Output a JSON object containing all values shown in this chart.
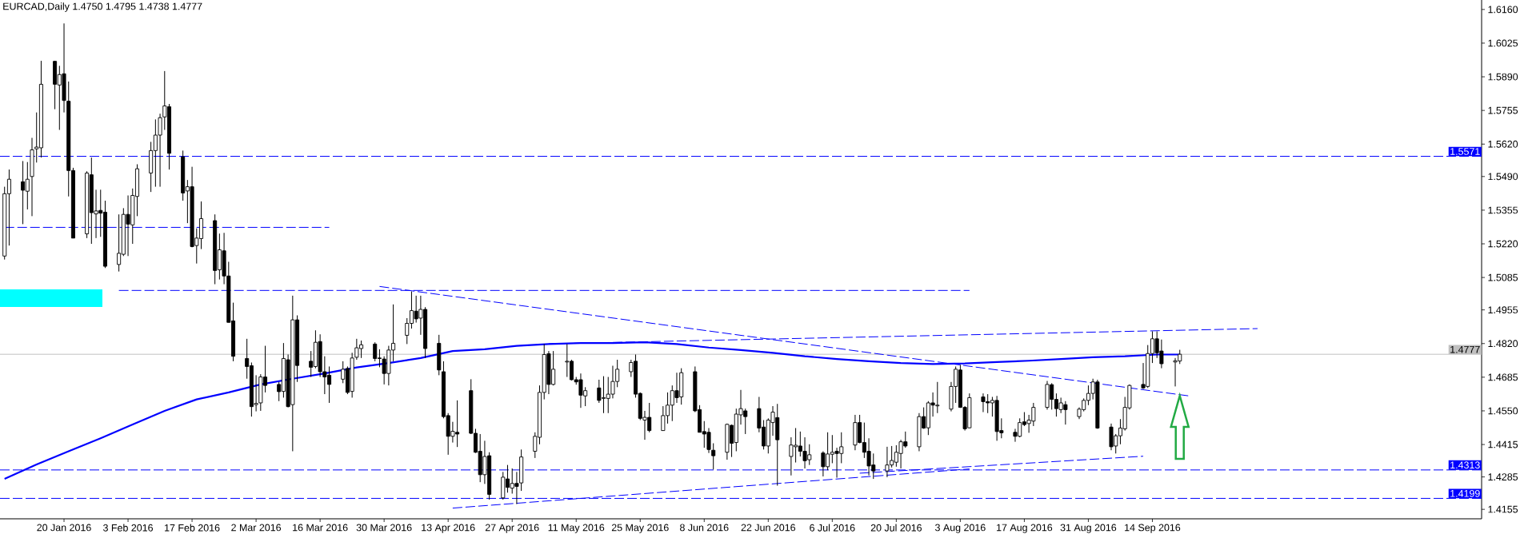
{
  "chart_data": {
    "type": "candlestick",
    "title": "EURCAD,Daily 1.4750 1.4795 1.4738 1.4777",
    "x": [
      "2016-01-07",
      "2016-01-08",
      "2016-01-11",
      "2016-01-12",
      "2016-01-13",
      "2016-01-14",
      "2016-01-15",
      "2016-01-18",
      "2016-01-19",
      "2016-01-20",
      "2016-01-21",
      "2016-01-22",
      "2016-01-25",
      "2016-01-26",
      "2016-01-27",
      "2016-01-28",
      "2016-01-29",
      "2016-02-01",
      "2016-02-02",
      "2016-02-03",
      "2016-02-04",
      "2016-02-05",
      "2016-02-08",
      "2016-02-09",
      "2016-02-10",
      "2016-02-11",
      "2016-02-12",
      "2016-02-15",
      "2016-02-16",
      "2016-02-17",
      "2016-02-18",
      "2016-02-19",
      "2016-02-22",
      "2016-02-23",
      "2016-02-24",
      "2016-02-25",
      "2016-02-26",
      "2016-02-29",
      "2016-03-01",
      "2016-03-02",
      "2016-03-03",
      "2016-03-04",
      "2016-03-07",
      "2016-03-08",
      "2016-03-09",
      "2016-03-10",
      "2016-03-11",
      "2016-03-14",
      "2016-03-15",
      "2016-03-16",
      "2016-03-17",
      "2016-03-18",
      "2016-03-21",
      "2016-03-22",
      "2016-03-23",
      "2016-03-24",
      "2016-03-25",
      "2016-03-28",
      "2016-03-29",
      "2016-03-30",
      "2016-03-31",
      "2016-04-01",
      "2016-04-04",
      "2016-04-05",
      "2016-04-06",
      "2016-04-07",
      "2016-04-08",
      "2016-04-11",
      "2016-04-12",
      "2016-04-13",
      "2016-04-14",
      "2016-04-15",
      "2016-04-18",
      "2016-04-19",
      "2016-04-20",
      "2016-04-21",
      "2016-04-22",
      "2016-04-25",
      "2016-04-26",
      "2016-04-27",
      "2016-04-28",
      "2016-04-29",
      "2016-05-02",
      "2016-05-03",
      "2016-05-04",
      "2016-05-05",
      "2016-05-06",
      "2016-05-09",
      "2016-05-10",
      "2016-05-11",
      "2016-05-12",
      "2016-05-13",
      "2016-05-16",
      "2016-05-17",
      "2016-05-18",
      "2016-05-19",
      "2016-05-20",
      "2016-05-23",
      "2016-05-24",
      "2016-05-25",
      "2016-05-26",
      "2016-05-27",
      "2016-05-30",
      "2016-05-31",
      "2016-06-01",
      "2016-06-02",
      "2016-06-03",
      "2016-06-06",
      "2016-06-07",
      "2016-06-08",
      "2016-06-09",
      "2016-06-10",
      "2016-06-13",
      "2016-06-14",
      "2016-06-15",
      "2016-06-16",
      "2016-06-17",
      "2016-06-20",
      "2016-06-21",
      "2016-06-22",
      "2016-06-23",
      "2016-06-24",
      "2016-06-27",
      "2016-06-28",
      "2016-06-29",
      "2016-06-30",
      "2016-07-01",
      "2016-07-04",
      "2016-07-05",
      "2016-07-06",
      "2016-07-07",
      "2016-07-08",
      "2016-07-11",
      "2016-07-12",
      "2016-07-13",
      "2016-07-14",
      "2016-07-15",
      "2016-07-18",
      "2016-07-19",
      "2016-07-20",
      "2016-07-21",
      "2016-07-22",
      "2016-07-25",
      "2016-07-26",
      "2016-07-27",
      "2016-07-28",
      "2016-07-29",
      "2016-08-01",
      "2016-08-02",
      "2016-08-03",
      "2016-08-04",
      "2016-08-05",
      "2016-08-08",
      "2016-08-09",
      "2016-08-10",
      "2016-08-11",
      "2016-08-12",
      "2016-08-15",
      "2016-08-16",
      "2016-08-17",
      "2016-08-18",
      "2016-08-19",
      "2016-08-22",
      "2016-08-23",
      "2016-08-24",
      "2016-08-25",
      "2016-08-26",
      "2016-08-29",
      "2016-08-30",
      "2016-08-31",
      "2016-09-01",
      "2016-09-02",
      "2016-09-05",
      "2016-09-06",
      "2016-09-07",
      "2016-09-08",
      "2016-09-09",
      "2016-09-12",
      "2016-09-13",
      "2016-09-14",
      "2016-09-15",
      "2016-09-16",
      "2016-09-19",
      "2016-09-20"
    ],
    "xlim": [
      "2016-01-06",
      "2016-11-25"
    ],
    "xticks": [
      {
        "value": "2016-01-20",
        "label": "20 Jan 2016"
      },
      {
        "value": "2016-02-03",
        "label": "3 Feb 2016"
      },
      {
        "value": "2016-02-17",
        "label": "17 Feb 2016"
      },
      {
        "value": "2016-03-02",
        "label": "2 Mar 2016"
      },
      {
        "value": "2016-03-16",
        "label": "16 Mar 2016"
      },
      {
        "value": "2016-03-30",
        "label": "30 Mar 2016"
      },
      {
        "value": "2016-04-13",
        "label": "13 Apr 2016"
      },
      {
        "value": "2016-04-27",
        "label": "27 Apr 2016"
      },
      {
        "value": "2016-05-11",
        "label": "11 May 2016"
      },
      {
        "value": "2016-05-25",
        "label": "25 May 2016"
      },
      {
        "value": "2016-06-08",
        "label": "8 Jun 2016"
      },
      {
        "value": "2016-06-22",
        "label": "22 Jun 2016"
      },
      {
        "value": "2016-07-06",
        "label": "6 Jul 2016"
      },
      {
        "value": "2016-07-20",
        "label": "20 Jul 2016"
      },
      {
        "value": "2016-08-03",
        "label": "3 Aug 2016"
      },
      {
        "value": "2016-08-17",
        "label": "17 Aug 2016"
      },
      {
        "value": "2016-08-31",
        "label": "31 Aug 2016"
      },
      {
        "value": "2016-09-14",
        "label": "14 Sep 2016"
      }
    ],
    "ohlc": [
      [
        1.5171,
        1.5449,
        1.5157,
        1.5421
      ],
      [
        1.5421,
        1.5518,
        1.5213,
        1.5479
      ],
      [
        1.5469,
        1.5552,
        1.5299,
        1.5435
      ],
      [
        1.5431,
        1.5548,
        1.5358,
        1.5479
      ],
      [
        1.549,
        1.5645,
        1.5331,
        1.5597
      ],
      [
        1.5601,
        1.5747,
        1.5546,
        1.5608
      ],
      [
        1.5605,
        1.5954,
        1.5566,
        1.586
      ],
      [
        1.5952,
        1.5954,
        1.576,
        1.586
      ],
      [
        1.5857,
        1.5934,
        1.5677,
        1.5899
      ],
      [
        1.5902,
        1.6104,
        1.5747,
        1.5795
      ],
      [
        1.5792,
        1.5871,
        1.541,
        1.5514
      ],
      [
        1.5514,
        1.5525,
        1.5243,
        1.5243
      ],
      [
        1.526,
        1.5511,
        1.5243,
        1.5504
      ],
      [
        1.5497,
        1.5566,
        1.522,
        1.5345
      ],
      [
        1.534,
        1.5437,
        1.5243,
        1.5352
      ],
      [
        1.5354,
        1.5437,
        1.5248,
        1.5343
      ],
      [
        1.5347,
        1.5393,
        1.5123,
        1.513
      ],
      [
        1.5137,
        1.5338,
        1.5109,
        1.5182
      ],
      [
        1.5178,
        1.5363,
        1.5171,
        1.5338
      ],
      [
        1.5338,
        1.5414,
        1.5171,
        1.5299
      ],
      [
        1.5296,
        1.5442,
        1.522,
        1.5414
      ],
      [
        1.541,
        1.5539,
        1.5331,
        1.5521
      ],
      [
        1.5504,
        1.5629,
        1.5428,
        1.5594
      ],
      [
        1.5594,
        1.5719,
        1.5449,
        1.5656
      ],
      [
        1.5656,
        1.5742,
        1.5449,
        1.5726
      ],
      [
        1.5729,
        1.5913,
        1.5677,
        1.5773
      ],
      [
        1.577,
        1.5781,
        1.5518,
        1.5583
      ],
      [
        1.5569,
        1.5594,
        1.5393,
        1.5424
      ],
      [
        1.5432,
        1.5476,
        1.5303,
        1.5449
      ],
      [
        1.5449,
        1.5529,
        1.5206,
        1.5209
      ],
      [
        1.5213,
        1.5282,
        1.5141,
        1.5243
      ],
      [
        1.5241,
        1.539,
        1.5199,
        1.5321
      ],
      [
        1.5313,
        1.5338,
        1.5058,
        1.5113
      ],
      [
        1.5116,
        1.5261,
        1.5077,
        1.5196
      ],
      [
        1.5192,
        1.5264,
        1.5058,
        1.5091
      ],
      [
        1.5091,
        1.5148,
        1.4905,
        1.4905
      ],
      [
        1.4911,
        1.4984,
        1.4749,
        1.4769
      ],
      [
        1.476,
        1.4839,
        1.4679,
        1.4728
      ],
      [
        1.4731,
        1.4744,
        1.4527,
        1.4567
      ],
      [
        1.4575,
        1.4693,
        1.4548,
        1.458
      ],
      [
        1.4582,
        1.4697,
        1.455,
        1.4686
      ],
      [
        1.4686,
        1.4811,
        1.4624,
        1.4652
      ],
      [
        1.4656,
        1.4666,
        1.4589,
        1.4627
      ],
      [
        1.4628,
        1.4822,
        1.4603,
        1.476
      ],
      [
        1.4755,
        1.4776,
        1.4564,
        1.4567
      ],
      [
        1.4575,
        1.5012,
        1.4388,
        1.4915
      ],
      [
        1.4915,
        1.4933,
        1.4666,
        1.4732
      ],
      [
        1.4749,
        1.479,
        1.4686,
        1.4725
      ],
      [
        1.4728,
        1.4873,
        1.4721,
        1.4825
      ],
      [
        1.4828,
        1.4857,
        1.4686,
        1.4707
      ],
      [
        1.4707,
        1.4769,
        1.4617,
        1.4686
      ],
      [
        1.4693,
        1.4728,
        1.4582,
        1.4656
      ],
      [
        1.4677,
        1.4749,
        1.4661,
        1.4717
      ],
      [
        1.472,
        1.4728,
        1.4617,
        1.4624
      ],
      [
        1.4628,
        1.4783,
        1.4603,
        1.4762
      ],
      [
        1.4765,
        1.4839,
        1.4755,
        1.4803
      ],
      [
        1.48,
        1.4832,
        1.4762,
        1.4815
      ],
      [
        1.4818,
        1.4825,
        1.4749,
        1.476
      ],
      [
        1.4762,
        1.4797,
        1.4725,
        1.476
      ],
      [
        1.4758,
        1.4769,
        1.4656,
        1.47
      ],
      [
        1.47,
        1.4811,
        1.4652,
        1.4794
      ],
      [
        1.4794,
        1.4977,
        1.4749,
        1.4821
      ],
      [
        1.4853,
        1.4922,
        1.4818,
        1.4901
      ],
      [
        1.4901,
        1.5029,
        1.488,
        1.4952
      ],
      [
        1.495,
        1.5012,
        1.4904,
        1.4919
      ],
      [
        1.4922,
        1.5012,
        1.4855,
        1.4957
      ],
      [
        1.4957,
        1.4966,
        1.4762,
        1.48
      ],
      [
        1.4821,
        1.4855,
        1.4693,
        1.4714
      ],
      [
        1.4707,
        1.4749,
        1.452,
        1.4527
      ],
      [
        1.4531,
        1.4541,
        1.4374,
        1.4448
      ],
      [
        1.4448,
        1.4506,
        1.4423,
        1.4468
      ],
      [
        1.4464,
        1.4592,
        1.4405,
        1.4457
      ],
      [
        1.4631,
        1.4677,
        1.4457,
        1.446
      ],
      [
        1.446,
        1.4478,
        1.4381,
        1.4384
      ],
      [
        1.4388,
        1.4457,
        1.4264,
        1.4294
      ],
      [
        1.4294,
        1.443,
        1.4257,
        1.4367
      ],
      [
        1.437,
        1.4384,
        1.4194,
        1.4215
      ],
      [
        1.4201,
        1.4305,
        1.4194,
        1.4284
      ],
      [
        1.4277,
        1.4333,
        1.4222,
        1.4243
      ],
      [
        1.424,
        1.4319,
        1.4218,
        1.4259
      ],
      [
        1.4259,
        1.4305,
        1.4176,
        1.4247
      ],
      [
        1.4261,
        1.4395,
        1.4229,
        1.4365
      ],
      [
        1.4388,
        1.4464,
        1.4361,
        1.4448
      ],
      [
        1.4444,
        1.4652,
        1.4416,
        1.4624
      ],
      [
        1.4624,
        1.4818,
        1.4596,
        1.4776
      ],
      [
        1.4779,
        1.479,
        1.4617,
        1.4656
      ],
      [
        1.4656,
        1.479,
        1.4652,
        1.4717
      ],
      [
        1.4746,
        1.4818,
        1.4686,
        1.4749
      ],
      [
        1.4749,
        1.4755,
        1.4672,
        1.4675
      ],
      [
        1.4675,
        1.4686,
        1.4655,
        1.4666
      ],
      [
        1.4675,
        1.47,
        1.4562,
        1.4613
      ],
      [
        1.461,
        1.4645,
        1.4569,
        1.4631
      ],
      [
        1.4642,
        1.4675,
        1.4582,
        1.4592
      ],
      [
        1.46,
        1.4689,
        1.4541,
        1.4603
      ],
      [
        1.46,
        1.4686,
        1.4541,
        1.4617
      ],
      [
        1.4617,
        1.4731,
        1.46,
        1.4668
      ],
      [
        1.4668,
        1.4755,
        1.4645,
        1.4717
      ],
      [
        1.4707,
        1.4755,
        1.4686,
        1.4744
      ],
      [
        1.4749,
        1.4776,
        1.4603,
        1.4617
      ],
      [
        1.462,
        1.4624,
        1.4513,
        1.452
      ],
      [
        1.4513,
        1.455,
        1.4434,
        1.4524
      ],
      [
        1.4524,
        1.4582,
        1.4464,
        1.4471
      ],
      [
        1.4471,
        1.4569,
        1.4471,
        1.4531
      ],
      [
        1.4531,
        1.4624,
        1.4499,
        1.4573
      ],
      [
        1.4573,
        1.4652,
        1.4509,
        1.4631
      ],
      [
        1.4631,
        1.4703,
        1.4582,
        1.4603
      ],
      [
        1.4606,
        1.4721,
        1.4575,
        1.4703
      ],
      [
        1.4707,
        1.4728,
        1.4545,
        1.455
      ],
      [
        1.4555,
        1.4573,
        1.4464,
        1.4464
      ],
      [
        1.4467,
        1.4509,
        1.4402,
        1.4457
      ],
      [
        1.4464,
        1.4481,
        1.4381,
        1.4395
      ],
      [
        1.4392,
        1.442,
        1.4315,
        1.437
      ],
      [
        1.4384,
        1.4499,
        1.4354,
        1.4496
      ],
      [
        1.4492,
        1.4495,
        1.4365,
        1.442
      ],
      [
        1.4423,
        1.4559,
        1.4388,
        1.4537
      ],
      [
        1.4534,
        1.4634,
        1.4495,
        1.4559
      ],
      [
        1.455,
        1.4559,
        1.4457,
        1.4527
      ],
      [
        1.4559,
        1.4606,
        1.4464,
        1.4481
      ],
      [
        1.4485,
        1.4513,
        1.4395,
        1.4409
      ],
      [
        1.4409,
        1.452,
        1.4379,
        1.4513
      ],
      [
        1.4503,
        1.4569,
        1.445,
        1.4545
      ],
      [
        1.4523,
        1.4578,
        1.425,
        1.4434
      ],
      [
        1.4367,
        1.4444,
        1.4291,
        1.4413
      ],
      [
        1.4406,
        1.4481,
        1.4343,
        1.4412
      ],
      [
        1.4409,
        1.4467,
        1.4367,
        1.4388
      ],
      [
        1.4388,
        1.4444,
        1.4319,
        1.435
      ],
      [
        1.4354,
        1.4416,
        1.4333,
        1.4374
      ],
      [
        1.4381,
        1.4388,
        1.4287,
        1.4326
      ],
      [
        1.4326,
        1.4464,
        1.4312,
        1.4377
      ],
      [
        1.4376,
        1.4453,
        1.434,
        1.4384
      ],
      [
        1.4388,
        1.4402,
        1.4282,
        1.4379
      ],
      [
        1.4379,
        1.4464,
        1.434,
        1.4406
      ],
      [
        1.4413,
        1.4534,
        1.4392,
        1.4503
      ],
      [
        1.4503,
        1.4534,
        1.442,
        1.4423
      ],
      [
        1.4423,
        1.4503,
        1.4361,
        1.4384
      ],
      [
        1.4388,
        1.444,
        1.4291,
        1.4329
      ],
      [
        1.4333,
        1.4379,
        1.4277,
        1.4309
      ],
      [
        1.4309,
        1.4406,
        1.4284,
        1.4333
      ],
      [
        1.4333,
        1.4409,
        1.4323,
        1.4351
      ],
      [
        1.4344,
        1.4412,
        1.4326,
        1.4384
      ],
      [
        1.4379,
        1.4434,
        1.4319,
        1.4426
      ],
      [
        1.4426,
        1.4467,
        1.4402,
        1.4409
      ],
      [
        1.4406,
        1.4541,
        1.4388,
        1.4527
      ],
      [
        1.4527,
        1.4564,
        1.4478,
        1.4481
      ],
      [
        1.4482,
        1.4589,
        1.4453,
        1.4582
      ],
      [
        1.4582,
        1.4624,
        1.4527,
        1.4573
      ],
      [
        1.457,
        1.4666,
        1.4541,
        1.4573
      ],
      [
        1.4557,
        1.4666,
        1.4548,
        1.4648
      ],
      [
        1.4648,
        1.4728,
        1.4582,
        1.4717
      ],
      [
        1.4714,
        1.4735,
        1.4562,
        1.4564
      ],
      [
        1.4564,
        1.4569,
        1.4471,
        1.4478
      ],
      [
        1.4482,
        1.462,
        1.4481,
        1.4603
      ],
      [
        1.4606,
        1.462,
        1.4545,
        1.4587
      ],
      [
        1.4587,
        1.4617,
        1.4541,
        1.4582
      ],
      [
        1.4582,
        1.4606,
        1.4527,
        1.4592
      ],
      [
        1.4592,
        1.461,
        1.443,
        1.4467
      ],
      [
        1.4471,
        1.452,
        1.444,
        1.4462
      ],
      [
        1.4464,
        1.4478,
        1.4426,
        1.4448
      ],
      [
        1.4448,
        1.452,
        1.4444,
        1.4503
      ],
      [
        1.4506,
        1.4545,
        1.4489,
        1.4495
      ],
      [
        1.4499,
        1.4534,
        1.4462,
        1.4513
      ],
      [
        1.4509,
        1.4582,
        1.4489,
        1.4564
      ],
      [
        1.4564,
        1.467,
        1.4555,
        1.4656
      ],
      [
        1.4655,
        1.4661,
        1.4555,
        1.4596
      ],
      [
        1.4596,
        1.462,
        1.4527,
        1.4559
      ],
      [
        1.4555,
        1.4603,
        1.4541,
        1.4582
      ],
      [
        1.4575,
        1.4589,
        1.4495,
        1.4555
      ],
      [
        1.4527,
        1.4564,
        1.4517,
        1.4557
      ],
      [
        1.4555,
        1.46,
        1.4548,
        1.4592
      ],
      [
        1.4592,
        1.4652,
        1.4573,
        1.462
      ],
      [
        1.462,
        1.4679,
        1.4596,
        1.4666
      ],
      [
        1.4666,
        1.4675,
        1.4478,
        1.4481
      ],
      [
        1.4485,
        1.4499,
        1.4392,
        1.4406
      ],
      [
        1.4409,
        1.4457,
        1.4379,
        1.445
      ],
      [
        1.445,
        1.4517,
        1.4416,
        1.4481
      ],
      [
        1.4478,
        1.4606,
        1.4471,
        1.4564
      ],
      [
        1.4562,
        1.4656,
        1.4555,
        1.4652
      ],
      [
        1.4656,
        1.4742,
        1.4638,
        1.4642
      ],
      [
        1.4648,
        1.4814,
        1.4642,
        1.478
      ],
      [
        1.478,
        1.4869,
        1.4742,
        1.4839
      ],
      [
        1.4839,
        1.4869,
        1.4762,
        1.4783
      ],
      [
        1.479,
        1.4836,
        1.4721,
        1.4739
      ],
      [
        1.4746,
        1.4762,
        1.4648,
        1.4751
      ],
      [
        1.475,
        1.4795,
        1.4738,
        1.4777
      ]
    ],
    "series": [
      {
        "type": "line",
        "color": "#0000ff",
        "line_style": "solid",
        "x": [
          "2016-01-07",
          "2016-01-14",
          "2016-01-21",
          "2016-01-28",
          "2016-02-04",
          "2016-02-11",
          "2016-02-18",
          "2016-02-25",
          "2016-03-03",
          "2016-03-10",
          "2016-03-17",
          "2016-03-24",
          "2016-03-31",
          "2016-04-07",
          "2016-04-14",
          "2016-04-21",
          "2016-04-28",
          "2016-05-05",
          "2016-05-12",
          "2016-05-19",
          "2016-05-26",
          "2016-06-02",
          "2016-06-09",
          "2016-06-16",
          "2016-06-23",
          "2016-06-30",
          "2016-07-07",
          "2016-07-14",
          "2016-07-21",
          "2016-07-28",
          "2016-08-04",
          "2016-08-11",
          "2016-08-18",
          "2016-08-25",
          "2016-09-01",
          "2016-09-08",
          "2016-09-15",
          "2016-09-20"
        ],
        "values": [
          1.4277,
          1.4335,
          1.4388,
          1.444,
          1.4495,
          1.455,
          1.4596,
          1.4624,
          1.4656,
          1.4679,
          1.47,
          1.4724,
          1.4742,
          1.4762,
          1.479,
          1.4797,
          1.4811,
          1.4818,
          1.4822,
          1.4822,
          1.4825,
          1.4818,
          1.4804,
          1.4794,
          1.4783,
          1.4769,
          1.4758,
          1.4749,
          1.4742,
          1.4738,
          1.474,
          1.4746,
          1.4751,
          1.4758,
          1.4765,
          1.4769,
          1.4776,
          1.4776
        ]
      },
      {
        "type": "line",
        "color": "#0000ff",
        "line_style": "dashed",
        "x": [
          "2016-05-05",
          "2016-10-07"
        ],
        "values": [
          1.4819,
          1.488
        ]
      },
      {
        "type": "line",
        "color": "#0000ff",
        "line_style": "dashed",
        "x": [
          "2016-03-29",
          "2016-09-22"
        ],
        "values": [
          1.5049,
          1.461
        ]
      },
      {
        "type": "line",
        "color": "#0000ff",
        "line_style": "dashed",
        "x": [
          "2016-04-14",
          "2016-08-05"
        ],
        "values": [
          1.416,
          1.4317
        ]
      },
      {
        "type": "line",
        "color": "#0000ff",
        "line_style": "dashed",
        "x": [
          "2016-07-12",
          "2016-09-12"
        ],
        "values": [
          1.43,
          1.4368
        ]
      },
      {
        "type": "line",
        "color": "#0000ff",
        "line_style": "dashed",
        "x": [
          "2016-01-07",
          "2016-03-18"
        ],
        "values": [
          1.5286,
          1.5286
        ]
      },
      {
        "type": "line",
        "color": "#0000ff",
        "line_style": "dashed",
        "x": [
          "2016-02-01",
          "2016-08-05"
        ],
        "values": [
          1.5033,
          1.5033
        ]
      }
    ],
    "ref_lines": [
      {
        "axis": "y",
        "value": 1.5571,
        "label": "1.5571",
        "color": "#0000ff",
        "line_style": "dashed"
      },
      {
        "axis": "y",
        "value": 1.4313,
        "label": "1.4313",
        "color": "#0000ff",
        "line_style": "dashed"
      },
      {
        "axis": "y",
        "value": 1.4199,
        "label": "1.4199",
        "color": "#0000ff",
        "line_style": "dashed"
      },
      {
        "axis": "y",
        "value": 1.4777,
        "label": "1.4777",
        "color": "#c0c0c0",
        "line_style": "solid"
      }
    ],
    "ylim": [
      1.4117,
      1.6198
    ],
    "yticks": [
      {
        "value": 1.4155,
        "label": "1.4155"
      },
      {
        "value": 1.4285,
        "label": "1.4285"
      },
      {
        "value": 1.4415,
        "label": "1.4415"
      },
      {
        "value": 1.455,
        "label": "1.4550"
      },
      {
        "value": 1.4685,
        "label": "1.4685"
      },
      {
        "value": 1.482,
        "label": "1.4820"
      },
      {
        "value": 1.4955,
        "label": "1.4955"
      },
      {
        "value": 1.5085,
        "label": "1.5085"
      },
      {
        "value": 1.522,
        "label": "1.5220"
      },
      {
        "value": 1.5355,
        "label": "1.5355"
      },
      {
        "value": 1.549,
        "label": "1.5490"
      },
      {
        "value": 1.562,
        "label": "1.5620"
      },
      {
        "value": 1.5755,
        "label": "1.5755"
      },
      {
        "value": 1.589,
        "label": "1.5890"
      },
      {
        "value": 1.6025,
        "label": "1.6025"
      },
      {
        "value": 1.616,
        "label": "1.6160"
      }
    ]
  }
}
